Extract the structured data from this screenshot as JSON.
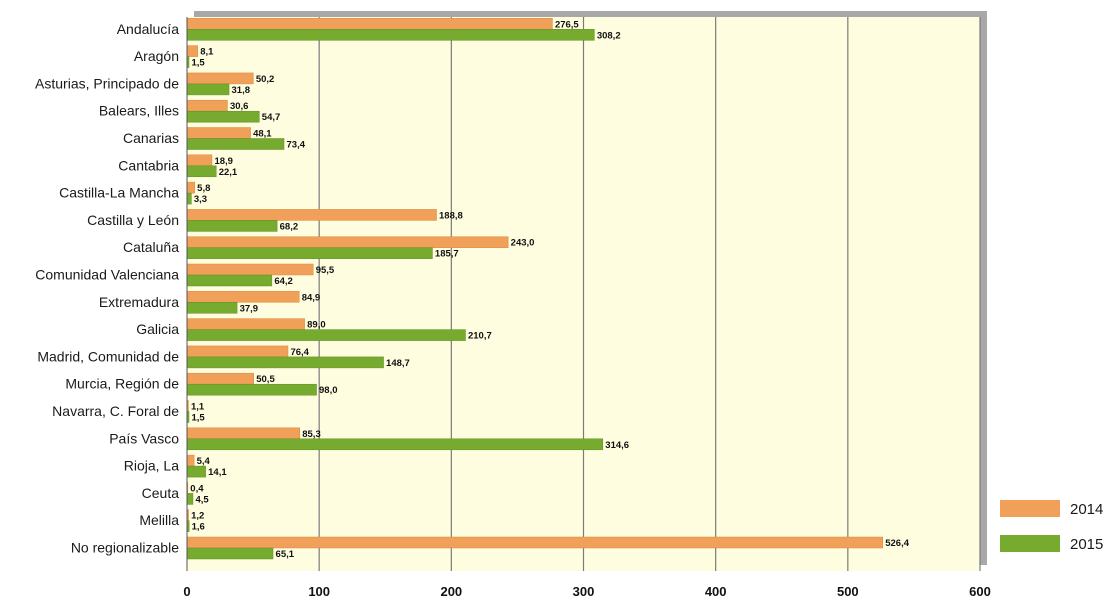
{
  "chart_data": {
    "type": "bar",
    "orientation": "horizontal",
    "categories": [
      "Andalucía",
      "Aragón",
      "Asturias, Principado de",
      "Balears, Illes",
      "Canarias",
      "Cantabria",
      "Castilla-La Mancha",
      "Castilla y León",
      "Cataluña",
      "Comunidad Valenciana",
      "Extremadura",
      "Galicia",
      "Madrid, Comunidad de",
      "Murcia, Región de",
      "Navarra, C. Foral de",
      "País Vasco",
      "Rioja, La",
      "Ceuta",
      "Melilla",
      "No regionalizable"
    ],
    "series": [
      {
        "name": "2014",
        "color": "#f0a058",
        "values": [
          276.5,
          8.1,
          50.2,
          30.6,
          48.1,
          18.9,
          5.8,
          188.8,
          243.0,
          95.5,
          84.9,
          89.0,
          76.4,
          50.5,
          1.1,
          85.3,
          5.4,
          0.4,
          1.2,
          526.4
        ],
        "labels": [
          "276,5",
          "8,1",
          "50,2",
          "30,6",
          "48,1",
          "18,9",
          "5,8",
          "188,8",
          "243,0",
          "95,5",
          "84,9",
          "89,0",
          "76,4",
          "50,5",
          "1,1",
          "85,3",
          "5,4",
          "0,4",
          "1,2",
          "526,4"
        ]
      },
      {
        "name": "2015",
        "color": "#77ab2f",
        "values": [
          308.2,
          1.5,
          31.8,
          54.7,
          73.4,
          22.1,
          3.3,
          68.2,
          185.7,
          64.2,
          37.9,
          210.7,
          148.7,
          98.0,
          1.5,
          314.6,
          14.1,
          4.5,
          1.6,
          65.1
        ],
        "labels": [
          "308,2",
          "1,5",
          "31,8",
          "54,7",
          "73,4",
          "22,1",
          "3,3",
          "68,2",
          "185,7",
          "64,2",
          "37,9",
          "210,7",
          "148,7",
          "98,0",
          "1,5",
          "314,6",
          "14,1",
          "4,5",
          "1,6",
          "65,1"
        ]
      }
    ],
    "xlim": [
      0,
      600
    ],
    "xticks": [
      0,
      100,
      200,
      300,
      400,
      500,
      600
    ],
    "grid": true,
    "legend_position": "bottom-right",
    "title": "",
    "xlabel": "",
    "ylabel": "",
    "plot_background": "#fffde0"
  }
}
